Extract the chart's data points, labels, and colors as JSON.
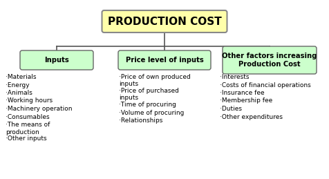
{
  "title": "PRODUCTION COST",
  "title_box_color": "#FFFFAA",
  "title_border_color": "#888888",
  "category_box_color": "#CCFFCC",
  "category_border_color": "#666666",
  "background_color": "#FFFFFF",
  "text_color": "#000000",
  "line_color": "#555555",
  "categories": [
    "Inputs",
    "Price level of inputs",
    "Other factors increasing\nProduction Cost"
  ],
  "col1_items": [
    "·Materials",
    "·Energy",
    "·Animals",
    "·Working hours",
    "·Machinery operation",
    "·Consumables",
    "·The means of\nproduction",
    "·Other inputs"
  ],
  "col2_items": [
    "·Price of own produced\ninputs",
    "·Price of purchased\ninputs",
    "·Time of procuring",
    "·Volume of procuring",
    "·Relationships"
  ],
  "col3_items": [
    "·Interests",
    "·Costs of financial operations",
    "·Insurance fee",
    "·Membership fee",
    "·Duties",
    "·Other expenditures"
  ],
  "figsize": [
    4.76,
    2.59
  ],
  "dpi": 100
}
